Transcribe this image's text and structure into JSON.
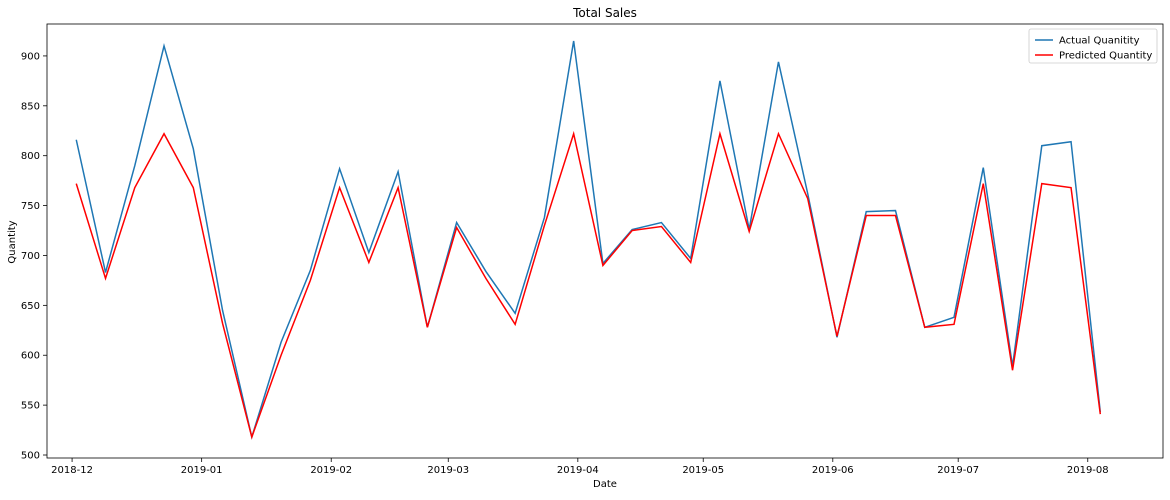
{
  "chart_data": {
    "type": "line",
    "title": "Total Sales",
    "xlabel": "Date",
    "ylabel": "Quantity",
    "x_ticks": [
      "2018-12",
      "2019-01",
      "2019-02",
      "2019-03",
      "2019-04",
      "2019-05",
      "2019-06",
      "2019-07",
      "2019-08"
    ],
    "y_ticks": [
      500,
      550,
      600,
      650,
      700,
      750,
      800,
      850,
      900
    ],
    "xlim": [
      "2018-11-25",
      "2019-08-19"
    ],
    "ylim": [
      497,
      932
    ],
    "legend_position": "top-right",
    "grid": false,
    "x": [
      "2018-12-02",
      "2018-12-09",
      "2018-12-16",
      "2018-12-23",
      "2018-12-30",
      "2019-01-06",
      "2019-01-13",
      "2019-01-20",
      "2019-01-27",
      "2019-02-03",
      "2019-02-10",
      "2019-02-17",
      "2019-02-24",
      "2019-03-03",
      "2019-03-10",
      "2019-03-17",
      "2019-03-24",
      "2019-03-31",
      "2019-04-07",
      "2019-04-14",
      "2019-04-21",
      "2019-04-28",
      "2019-05-05",
      "2019-05-12",
      "2019-05-19",
      "2019-05-26",
      "2019-06-02",
      "2019-06-09",
      "2019-06-16",
      "2019-06-23",
      "2019-06-30",
      "2019-07-07",
      "2019-07-14",
      "2019-07-21",
      "2019-07-28",
      "2019-08-04"
    ],
    "series": [
      {
        "name": "Actual Quanitity",
        "color": "#1f77b4",
        "values": [
          816,
          683,
          790,
          910,
          807,
          645,
          518,
          613,
          685,
          787,
          703,
          784,
          628,
          733,
          684,
          642,
          738,
          915,
          692,
          726,
          733,
          697,
          875,
          726,
          894,
          762,
          618,
          744,
          745,
          628,
          638,
          788,
          589,
          810,
          814,
          543
        ]
      },
      {
        "name": "Predicted Quantity",
        "color": "#ff0000",
        "values": [
          772,
          677,
          768,
          822,
          768,
          632,
          518,
          600,
          675,
          768,
          693,
          768,
          628,
          728,
          677,
          631,
          730,
          822,
          690,
          725,
          729,
          693,
          822,
          724,
          822,
          757,
          619,
          740,
          740,
          628,
          631,
          772,
          585,
          772,
          768,
          541
        ]
      }
    ]
  }
}
